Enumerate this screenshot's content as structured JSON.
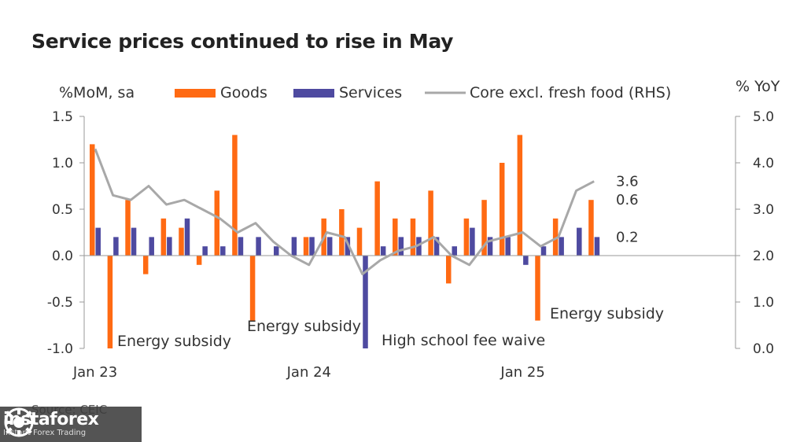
{
  "title": "Service prices continued to rise in May",
  "source": "Source: CEIC",
  "watermark": {
    "name": "instaforex",
    "tagline": "Instant Forex Trading"
  },
  "colors": {
    "goods": "#ff6a13",
    "services": "#4e4aa0",
    "core": "#a8a8a8",
    "axis": "#999999"
  },
  "chart_data": {
    "type": "bar",
    "ylabel_left": "%MoM, sa",
    "ylabel_right": "% YoY",
    "ylim_left": [
      -1.0,
      1.5
    ],
    "ylim_right": [
      0.0,
      5.0
    ],
    "yticks_left": [
      "1.5",
      "1.0",
      "0.5",
      "0.0",
      "-0.5",
      "-1.0"
    ],
    "yticks_right": [
      "5.0",
      "4.0",
      "3.0",
      "2.0",
      "1.0",
      "0.0"
    ],
    "x_tick_labels": [
      {
        "label": "Jan 23",
        "index": 0
      },
      {
        "label": "Jan 24",
        "index": 12
      },
      {
        "label": "Jan 25",
        "index": 24
      }
    ],
    "categories": [
      "Jan 23",
      "Feb 23",
      "Mar 23",
      "Apr 23",
      "May 23",
      "Jun 23",
      "Jul 23",
      "Aug 23",
      "Sep 23",
      "Oct 23",
      "Nov 23",
      "Dec 23",
      "Jan 24",
      "Feb 24",
      "Mar 24",
      "Apr 24",
      "May 24",
      "Jun 24",
      "Jul 24",
      "Aug 24",
      "Sep 24",
      "Oct 24",
      "Nov 24",
      "Dec 24",
      "Jan 25",
      "Feb 25",
      "Mar 25",
      "Apr 25",
      "May 25"
    ],
    "series": [
      {
        "name": "Goods",
        "type": "bar",
        "values": [
          1.2,
          -1.0,
          0.6,
          -0.2,
          0.4,
          0.3,
          -0.1,
          0.7,
          1.3,
          -0.7,
          0.0,
          0.0,
          0.2,
          0.4,
          0.5,
          0.3,
          0.8,
          0.4,
          0.4,
          0.7,
          -0.3,
          0.4,
          0.6,
          1.0,
          1.3,
          -0.7,
          0.4,
          0.0,
          0.6
        ]
      },
      {
        "name": "Services",
        "type": "bar",
        "values": [
          0.3,
          0.2,
          0.3,
          0.2,
          0.2,
          0.4,
          0.1,
          0.1,
          0.2,
          0.2,
          0.1,
          0.2,
          0.2,
          0.2,
          0.2,
          -1.0,
          0.1,
          0.2,
          0.2,
          0.2,
          0.1,
          0.3,
          0.2,
          0.2,
          -0.1,
          0.1,
          0.2,
          0.3,
          0.2
        ]
      },
      {
        "name": "Core excl. fresh food (RHS)",
        "type": "line",
        "axis": "right",
        "values": [
          4.3,
          3.3,
          3.2,
          3.5,
          3.1,
          3.2,
          3.0,
          2.8,
          2.5,
          2.7,
          2.3,
          2.0,
          1.8,
          2.5,
          2.4,
          1.6,
          1.9,
          2.1,
          2.2,
          2.4,
          2.0,
          1.8,
          2.3,
          2.4,
          2.5,
          2.2,
          2.4,
          3.4,
          3.6
        ]
      }
    ],
    "value_labels": [
      {
        "text": "3.6",
        "value": 3.6,
        "axis": "right"
      },
      {
        "text": "0.6",
        "value": 0.6,
        "axis": "left"
      },
      {
        "text": "0.2",
        "value": 0.2,
        "axis": "left"
      }
    ],
    "annotations": [
      {
        "text": "Energy subsidy",
        "index": 1
      },
      {
        "text": "Energy subsidy",
        "index": 9
      },
      {
        "text": "High school fee waive",
        "index": 15
      },
      {
        "text": "Energy subsidy",
        "index": 25
      }
    ],
    "legend_position": "top",
    "grid": false
  }
}
